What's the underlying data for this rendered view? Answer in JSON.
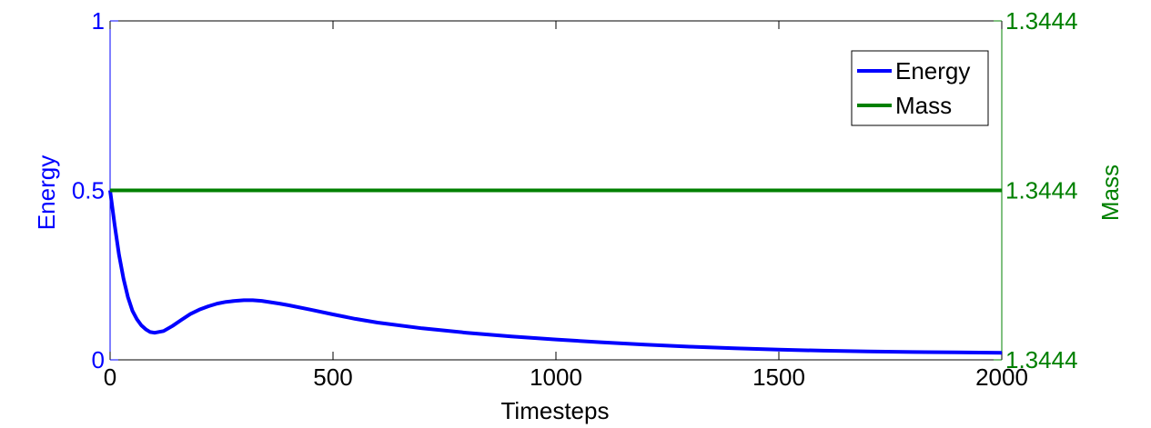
{
  "chart_data": {
    "type": "line",
    "title": "",
    "xlabel": "Timesteps",
    "ylabel_left": "Energy",
    "ylabel_right": "Mass",
    "xlim": [
      0,
      2000
    ],
    "ylim_left": [
      0,
      1
    ],
    "ylim_right": [
      1.34439,
      1.34441
    ],
    "x_ticks": [
      {
        "value": 0,
        "label": "0"
      },
      {
        "value": 500,
        "label": "500"
      },
      {
        "value": 1000,
        "label": "1000"
      },
      {
        "value": 1500,
        "label": "1500"
      },
      {
        "value": 2000,
        "label": "2000"
      }
    ],
    "y_left_ticks": [
      {
        "value": 0,
        "label": "0"
      },
      {
        "value": 0.5,
        "label": "0.5"
      },
      {
        "value": 1,
        "label": "1"
      }
    ],
    "y_right_ticks": [
      {
        "value": 1.34439,
        "label": "1.3444"
      },
      {
        "value": 1.3444,
        "label": "1.3444"
      },
      {
        "value": 1.34441,
        "label": "1.3444"
      }
    ],
    "grid": false,
    "legend_position": "top-right",
    "colors": {
      "energy": "#0000ff",
      "mass": "#008000",
      "left_axis": "#0000ff",
      "right_axis": "#008000",
      "axis": "#000000"
    },
    "series": [
      {
        "name": "Energy",
        "axis": "left",
        "x": [
          0,
          10,
          20,
          30,
          40,
          50,
          60,
          70,
          80,
          90,
          100,
          120,
          140,
          160,
          180,
          200,
          220,
          240,
          260,
          280,
          300,
          320,
          340,
          360,
          380,
          400,
          450,
          500,
          550,
          600,
          700,
          800,
          900,
          1000,
          1100,
          1200,
          1300,
          1400,
          1500,
          1600,
          1700,
          1800,
          1900,
          2000
        ],
        "values": [
          0.5,
          0.4,
          0.31,
          0.24,
          0.185,
          0.145,
          0.12,
          0.102,
          0.09,
          0.082,
          0.08,
          0.085,
          0.1,
          0.118,
          0.135,
          0.148,
          0.158,
          0.166,
          0.171,
          0.174,
          0.176,
          0.176,
          0.174,
          0.17,
          0.166,
          0.161,
          0.148,
          0.134,
          0.121,
          0.11,
          0.093,
          0.08,
          0.069,
          0.06,
          0.052,
          0.045,
          0.039,
          0.034,
          0.03,
          0.027,
          0.025,
          0.023,
          0.022,
          0.021
        ]
      },
      {
        "name": "Mass",
        "axis": "right",
        "x": [
          0,
          2000
        ],
        "values": [
          1.3444,
          1.3444
        ]
      }
    ]
  }
}
